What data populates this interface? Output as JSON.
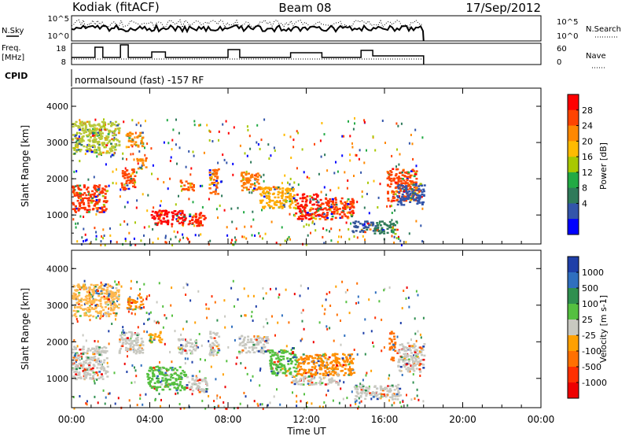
{
  "header": {
    "station": "Kodiak (fitACF)",
    "beam": "Beam 08",
    "date": "17/Sep/2012"
  },
  "sky_noise_panel": {
    "left_label": "N.Sky",
    "right_label": "N.Search",
    "left_ticks": [
      "10^5",
      "10^0"
    ],
    "right_ticks": [
      "10^5",
      "10^0"
    ]
  },
  "freq_panel": {
    "left_label_line1": "Freq.",
    "left_label_line2": "[MHz]",
    "right_label": "Nave",
    "left_ticks": [
      "18",
      "8"
    ],
    "right_ticks": [
      "60",
      "0"
    ]
  },
  "cpid": {
    "label": "CPID",
    "text": "normalsound (fast) -157 RF"
  },
  "x_axis": {
    "label": "Time UT",
    "ticks": [
      "00:00",
      "04:00",
      "08:00",
      "12:00",
      "16:00",
      "20:00",
      "00:00"
    ]
  },
  "chart_data": [
    {
      "type": "heatmap",
      "name": "power-panel",
      "ylabel": "Slant Range [km]",
      "yticks": [
        "4000",
        "3000",
        "2000",
        "1000"
      ],
      "ylim": [
        200,
        4500
      ],
      "xlim_hours": [
        0,
        24
      ],
      "data_end_hour": 18.0,
      "colorbar": {
        "label": "Power [dB]",
        "ticks": [
          "28",
          "24",
          "20",
          "16",
          "12",
          "8",
          "4"
        ],
        "colors": [
          "#ff0000",
          "#ff4400",
          "#ff8800",
          "#ffbb00",
          "#a8c800",
          "#22aa44",
          "#2f7a5a",
          "#3355aa",
          "#0000ff"
        ]
      },
      "echo_regions": [
        {
          "h0": 0.0,
          "h1": 1.8,
          "r0": 1100,
          "r1": 1850,
          "color": "#ff3300"
        },
        {
          "h0": 0.0,
          "h1": 2.4,
          "r0": 2700,
          "r1": 3600,
          "color": "#b8c838"
        },
        {
          "h0": 2.5,
          "h1": 3.2,
          "r0": 1700,
          "r1": 2300,
          "color": "#ff4400"
        },
        {
          "h0": 2.8,
          "h1": 3.6,
          "r0": 2900,
          "r1": 3300,
          "color": "#ff8800"
        },
        {
          "h0": 3.3,
          "h1": 3.8,
          "r0": 2300,
          "r1": 2600,
          "color": "#ff8800"
        },
        {
          "h0": 4.0,
          "h1": 5.8,
          "r0": 750,
          "r1": 1150,
          "color": "#ff0000"
        },
        {
          "h0": 5.9,
          "h1": 6.8,
          "r0": 700,
          "r1": 1100,
          "color": "#ff2200"
        },
        {
          "h0": 5.5,
          "h1": 6.2,
          "r0": 1700,
          "r1": 2000,
          "color": "#ff5500"
        },
        {
          "h0": 7.0,
          "h1": 7.5,
          "r0": 1600,
          "r1": 2300,
          "color": "#ff6600"
        },
        {
          "h0": 8.6,
          "h1": 9.6,
          "r0": 1700,
          "r1": 2200,
          "color": "#ff7700"
        },
        {
          "h0": 9.6,
          "h1": 11.4,
          "r0": 1200,
          "r1": 1800,
          "color": "#ffaa00"
        },
        {
          "h0": 11.4,
          "h1": 12.8,
          "r0": 900,
          "r1": 1600,
          "color": "#ff1100"
        },
        {
          "h0": 12.8,
          "h1": 14.4,
          "r0": 900,
          "r1": 1500,
          "color": "#ff3300"
        },
        {
          "h0": 14.3,
          "h1": 15.4,
          "r0": 550,
          "r1": 850,
          "color": "#335599"
        },
        {
          "h0": 15.4,
          "h1": 16.6,
          "r0": 500,
          "r1": 850,
          "color": "#2f7a5a"
        },
        {
          "h0": 16.1,
          "h1": 17.6,
          "r0": 1400,
          "r1": 2300,
          "color": "#ff4400"
        },
        {
          "h0": 16.6,
          "h1": 18.0,
          "r0": 1300,
          "r1": 1900,
          "color": "#3355aa"
        }
      ]
    },
    {
      "type": "heatmap",
      "name": "velocity-panel",
      "ylabel": "Slant Range [km]",
      "yticks": [
        "4000",
        "3000",
        "2000",
        "1000"
      ],
      "ylim": [
        200,
        4500
      ],
      "xlim_hours": [
        0,
        24
      ],
      "data_end_hour": 18.0,
      "colorbar": {
        "label": "Velocity [m s-1]",
        "ticks": [
          "1000",
          "500",
          "100",
          "25",
          "-25",
          "-100",
          "-500",
          "-1000"
        ],
        "colors": [
          "#1f3fa8",
          "#2f6fbf",
          "#2f8f4f",
          "#55c040",
          "#c8c8c0",
          "#ffa000",
          "#ff7000",
          "#ff3000",
          "#ee0000"
        ]
      },
      "echo_regions": [
        {
          "h0": 0.0,
          "h1": 1.8,
          "r0": 1000,
          "r1": 1900,
          "color": "#c8c8c0"
        },
        {
          "h0": 0.0,
          "h1": 2.4,
          "r0": 2700,
          "r1": 3600,
          "color": "#ffb84d"
        },
        {
          "h0": 2.4,
          "h1": 3.6,
          "r0": 1700,
          "r1": 2300,
          "color": "#c8c8c0"
        },
        {
          "h0": 2.8,
          "h1": 3.6,
          "r0": 2900,
          "r1": 3300,
          "color": "#ff8c00"
        },
        {
          "h0": 3.9,
          "h1": 4.6,
          "r0": 2000,
          "r1": 2300,
          "color": "#ffa000"
        },
        {
          "h0": 3.8,
          "h1": 5.8,
          "r0": 700,
          "r1": 1350,
          "color": "#55c040"
        },
        {
          "h0": 5.8,
          "h1": 6.9,
          "r0": 650,
          "r1": 1100,
          "color": "#c8c8c0"
        },
        {
          "h0": 5.4,
          "h1": 6.4,
          "r0": 1700,
          "r1": 2100,
          "color": "#c8c8c0"
        },
        {
          "h0": 7.0,
          "h1": 7.5,
          "r0": 1600,
          "r1": 2300,
          "color": "#c8c8c0"
        },
        {
          "h0": 8.5,
          "h1": 10.0,
          "r0": 1700,
          "r1": 2200,
          "color": "#c8c8c0"
        },
        {
          "h0": 10.0,
          "h1": 11.5,
          "r0": 1100,
          "r1": 1800,
          "color": "#55c040"
        },
        {
          "h0": 11.5,
          "h1": 14.4,
          "r0": 1100,
          "r1": 1700,
          "color": "#ff8c00"
        },
        {
          "h0": 11.2,
          "h1": 13.6,
          "r0": 850,
          "r1": 1100,
          "color": "#c8c8c0"
        },
        {
          "h0": 14.4,
          "h1": 16.8,
          "r0": 450,
          "r1": 850,
          "color": "#c8c8c0"
        },
        {
          "h0": 16.2,
          "h1": 16.5,
          "r0": 1500,
          "r1": 2300,
          "color": "#ff7000"
        },
        {
          "h0": 16.6,
          "h1": 18.0,
          "r0": 1200,
          "r1": 2000,
          "color": "#c8c8c0"
        }
      ]
    }
  ]
}
